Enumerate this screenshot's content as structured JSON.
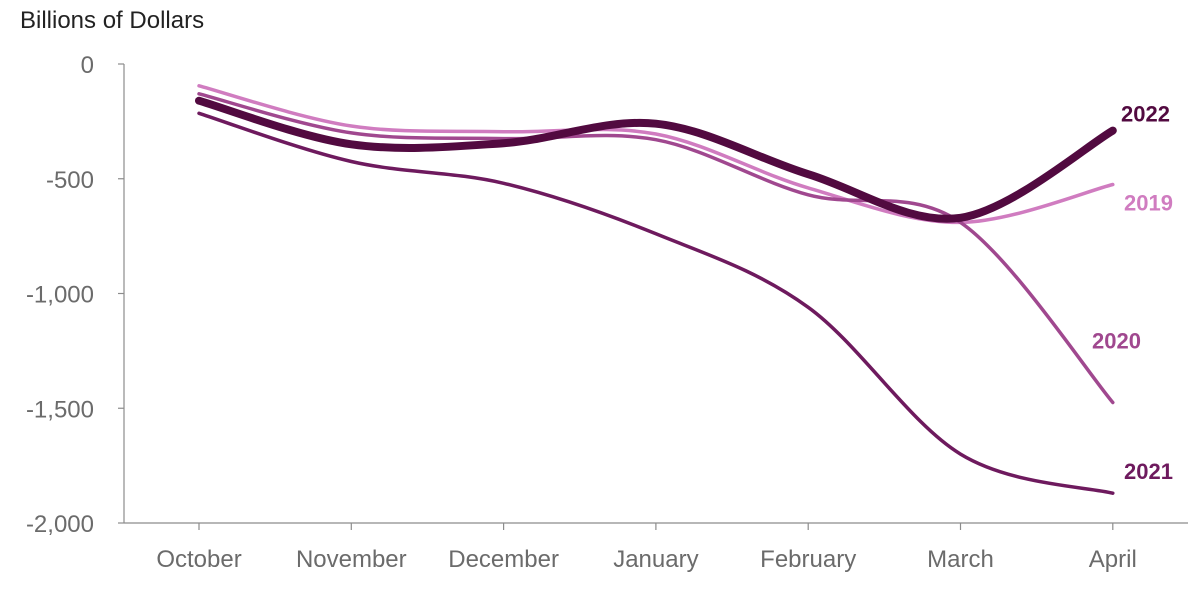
{
  "chart_data": {
    "type": "line",
    "title": "",
    "ylabel": "Billions of Dollars",
    "xlabel": "",
    "categories": [
      "October",
      "November",
      "December",
      "January",
      "February",
      "March",
      "April"
    ],
    "ylim": [
      -2000,
      0
    ],
    "yticks": [
      0,
      -500,
      -1000,
      -1500,
      -2000
    ],
    "ytick_labels": [
      "0",
      "-500",
      "-1,000",
      "-1,500",
      "-2,000"
    ],
    "grid": false,
    "legend": "direct labels at line ends",
    "series": [
      {
        "name": "2019",
        "color": "#d07cc0",
        "values": [
          -95,
          -270,
          -295,
          -305,
          -540,
          -690,
          -525
        ]
      },
      {
        "name": "2020",
        "color": "#a0488f",
        "values": [
          -130,
          -300,
          -325,
          -330,
          -570,
          -690,
          -1475
        ]
      },
      {
        "name": "2021",
        "color": "#6e1a5e",
        "values": [
          -215,
          -425,
          -520,
          -740,
          -1060,
          -1700,
          -1870
        ]
      },
      {
        "name": "2022",
        "color": "#520a40",
        "values": [
          -160,
          -350,
          -345,
          -260,
          -480,
          -670,
          -290
        ]
      }
    ]
  }
}
